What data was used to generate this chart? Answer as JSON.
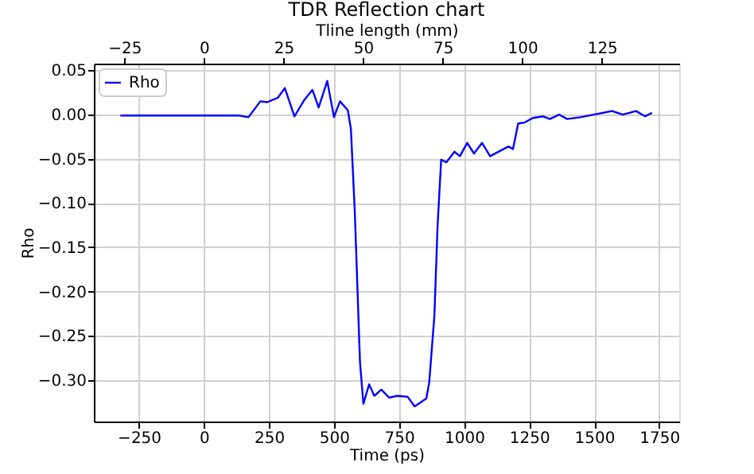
{
  "chart_data": {
    "type": "line",
    "title": "TDR Reflection chart",
    "xlabel": "Time (ps)",
    "ylabel": "Rho",
    "x2label": "Tline length (mm)",
    "series": [
      {
        "name": "Rho",
        "color": "#0000ff",
        "x": [
          -321,
          -200,
          -100,
          0,
          100,
          131,
          171,
          217,
          243,
          284,
          311,
          348,
          387,
          417,
          441,
          474,
          500,
          523,
          553,
          565,
          580,
          600,
          613,
          635,
          655,
          682,
          712,
          743,
          783,
          810,
          855,
          866,
          886,
          898,
          912,
          932,
          963,
          984,
          1012,
          1038,
          1069,
          1100,
          1171,
          1188,
          1208,
          1233,
          1263,
          1304,
          1330,
          1365,
          1396,
          1447,
          1498,
          1569,
          1610,
          1661,
          1696,
          1722
        ],
        "values": [
          -0.001,
          -0.001,
          -0.001,
          -0.001,
          -0.001,
          -0.001,
          -0.003,
          0.015,
          0.014,
          0.019,
          0.03,
          -0.002,
          0.017,
          0.028,
          0.008,
          0.038,
          -0.003,
          0.015,
          0.005,
          -0.016,
          -0.11,
          -0.28,
          -0.327,
          -0.305,
          -0.318,
          -0.311,
          -0.32,
          -0.318,
          -0.319,
          -0.33,
          -0.321,
          -0.303,
          -0.227,
          -0.127,
          -0.051,
          -0.054,
          -0.042,
          -0.047,
          -0.032,
          -0.044,
          -0.032,
          -0.047,
          -0.036,
          -0.039,
          -0.01,
          -0.009,
          -0.004,
          -0.002,
          -0.005,
          0.0,
          -0.005,
          -0.003,
          0.0,
          0.004,
          0.0,
          0.004,
          -0.002,
          0.002
        ]
      }
    ],
    "xlim": [
      -423,
      1827
    ],
    "xticks": [
      -250,
      0,
      250,
      500,
      750,
      1000,
      1250,
      1500,
      1750
    ],
    "x2lim": [
      -34.6,
      149.3
    ],
    "x2ticks": [
      -25,
      0,
      25,
      50,
      75,
      100,
      125
    ],
    "ylim": [
      -0.347,
      0.0576
    ],
    "yticks": [
      {
        "value": -0.3,
        "label": "−0.30"
      },
      {
        "value": -0.25,
        "label": "−0.25"
      },
      {
        "value": -0.2,
        "label": "−0.20"
      },
      {
        "value": -0.15,
        "label": "−0.15"
      },
      {
        "value": -0.1,
        "label": "−0.10"
      },
      {
        "value": -0.05,
        "label": "−0.05"
      },
      {
        "value": 0,
        "label": "0.00"
      },
      {
        "value": 0.05,
        "label": "0.05"
      }
    ],
    "grid": true,
    "legend": "top left",
    "line_style": "solid",
    "marker": "none"
  }
}
